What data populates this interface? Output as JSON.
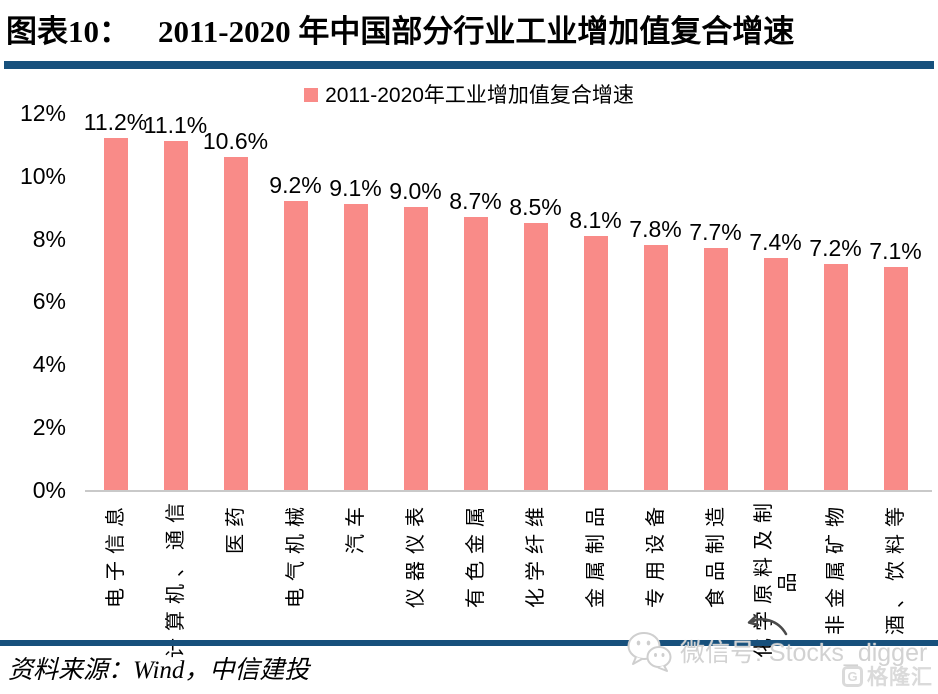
{
  "header": {
    "figure_label": "图表10：",
    "title": "2011-2020 年中国部分行业工业增加值复合增速"
  },
  "legend": {
    "label": "2011-2020年工业增加值复合增速"
  },
  "chart_data": {
    "type": "bar",
    "title": "2011-2020 年中国部分行业工业增加值复合增速",
    "series_name": "2011-2020年工业增加值复合增速",
    "categories": [
      "电子信息",
      "计算机、通信",
      "医药",
      "电气机械",
      "汽车",
      "仪器仪表",
      "有色金属",
      "化学纤维",
      "金属制品",
      "专用设备",
      "食品制造",
      "化学原料及制品",
      "非金属矿物",
      "酒、饮料等"
    ],
    "values": [
      11.2,
      11.1,
      10.6,
      9.2,
      9.1,
      9.0,
      8.7,
      8.5,
      8.1,
      7.8,
      7.7,
      7.4,
      7.2,
      7.1
    ],
    "value_labels": [
      "11.2%",
      "11.1%",
      "10.6%",
      "9.2%",
      "9.1%",
      "9.0%",
      "8.7%",
      "8.5%",
      "8.1%",
      "7.8%",
      "7.7%",
      "7.4%",
      "7.2%",
      "7.1%"
    ],
    "xlabel": "",
    "ylabel": "",
    "ylim": [
      0,
      12
    ],
    "y_ticks": [
      {
        "v": 0,
        "label": "0%"
      },
      {
        "v": 2,
        "label": "2%"
      },
      {
        "v": 4,
        "label": "4%"
      },
      {
        "v": 6,
        "label": "6%"
      },
      {
        "v": 8,
        "label": "8%"
      },
      {
        "v": 10,
        "label": "10%"
      },
      {
        "v": 12,
        "label": "12%"
      }
    ],
    "grid": false,
    "legend_position": "top-center",
    "bar_color": "#F98B88"
  },
  "footer": {
    "source": "资料来源：Wind，中信建投"
  },
  "watermark": {
    "wechat_text": "微信号: Stocks_digger",
    "logo_text": "格隆汇",
    "logo_letter": "G"
  },
  "colors": {
    "accent_navy": "#17507C",
    "bar": "#F98B88",
    "axis_line": "#C9C9C9",
    "watermark_gray": "#D2D2D2"
  }
}
